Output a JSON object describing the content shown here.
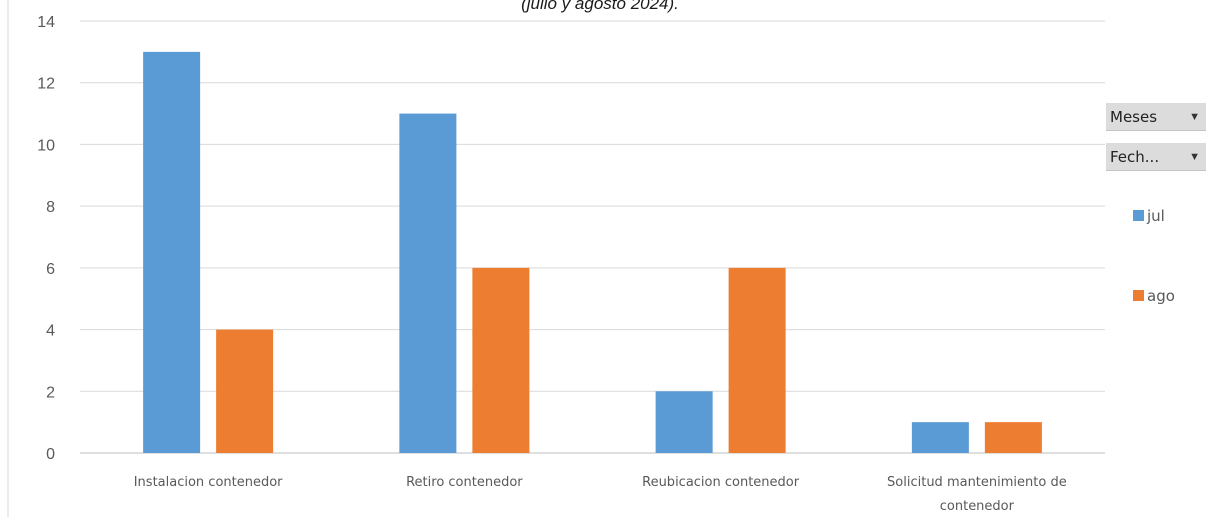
{
  "chart_data": {
    "type": "bar",
    "title_fragment": "(julio y agosto 2024).",
    "categories": [
      "Instalacion contenedor",
      "Retiro contenedor",
      "Reubicacion contenedor",
      "Solicitud mantenimiento de contenedor"
    ],
    "category_lines": [
      [
        "Instalacion contenedor"
      ],
      [
        "Retiro contenedor"
      ],
      [
        "Reubicacion contenedor"
      ],
      [
        "Solicitud mantenimiento de",
        "contenedor"
      ]
    ],
    "series": [
      {
        "name": "jul",
        "color": "#5b9bd5",
        "values": [
          13,
          11,
          2,
          1
        ]
      },
      {
        "name": "ago",
        "color": "#ed7d31",
        "values": [
          4,
          6,
          6,
          1
        ]
      }
    ],
    "ylim": [
      0,
      14
    ],
    "yticks": [
      0,
      2,
      4,
      6,
      8,
      10,
      12,
      14
    ],
    "grid": true,
    "legend_position": "right"
  },
  "field_buttons": {
    "meses": {
      "label": "Meses",
      "icon": "dropdown-arrow-icon"
    },
    "fecha": {
      "label": "Fech...",
      "icon": "dropdown-arrow-icon"
    }
  }
}
